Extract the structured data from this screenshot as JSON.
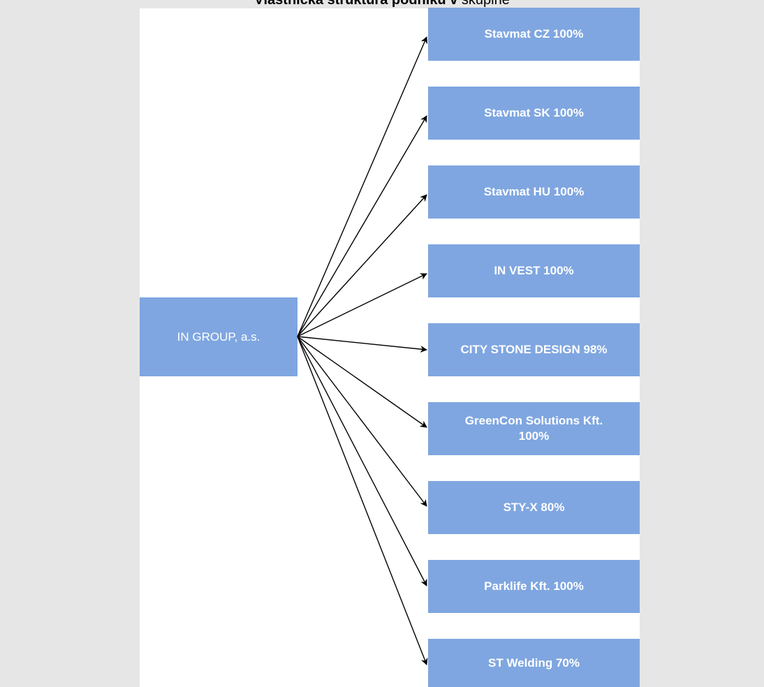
{
  "title": {
    "bold": "Vlastnická struktura podniků v",
    "normal": " skupině"
  },
  "root": {
    "label": "IN GROUP, a.s."
  },
  "children": [
    {
      "label": "Stavmat CZ 100%"
    },
    {
      "label": "Stavmat SK 100%"
    },
    {
      "label": "Stavmat HU 100%"
    },
    {
      "label": "IN VEST 100%"
    },
    {
      "label": "CITY STONE DESIGN 98%"
    },
    {
      "label": "GreenCon Solutions Kft. 100%"
    },
    {
      "label": "STY-X 80%"
    },
    {
      "label": "Parklife Kft. 100%"
    },
    {
      "label": "ST Welding 70%"
    }
  ],
  "colors": {
    "box_fill": "#7fa6e0",
    "box_text": "#ffffff",
    "background": "#e6e6e6",
    "canvas": "#ffffff",
    "arrow": "#000000"
  }
}
